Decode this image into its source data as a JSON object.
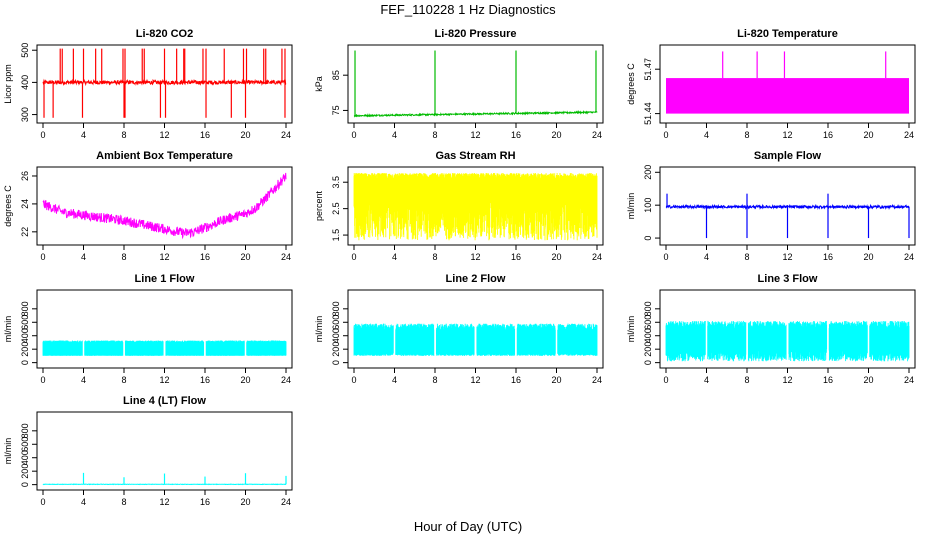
{
  "figure": {
    "title": "FEF_110228  1 Hz Diagnostics",
    "xlabel": "Hour of Day (UTC)"
  },
  "chart_data": [
    {
      "type": "line",
      "title": "Li-820 CO2",
      "ylabel": "Licor ppm",
      "color": "#ff0000",
      "xlim": [
        0,
        24
      ],
      "ylim": [
        280,
        510
      ],
      "xticks": [
        0,
        4,
        8,
        12,
        16,
        20,
        24
      ],
      "yticks": [
        300,
        400,
        500
      ],
      "baseline": 400,
      "noise": 6,
      "spikes_up": [
        1.7,
        1.9,
        3.0,
        4.0,
        5.2,
        5.8,
        7.9,
        8.1,
        9.8,
        10.0,
        12.0,
        13.2,
        13.9,
        14.0,
        15.8,
        16.1,
        17.9,
        19.8,
        20.1,
        21.8,
        22.0,
        23.6,
        23.9
      ],
      "spike_up_value": 505,
      "spikes_down": [
        0.1,
        1.0,
        3.9,
        8.0,
        8.1,
        11.6,
        12.1,
        16.1,
        18.6,
        20.0,
        23.9
      ],
      "spike_down_value": 290
    },
    {
      "type": "line",
      "title": "Li-820 Pressure",
      "ylabel": "kPa",
      "color": "#00bb00",
      "xlim": [
        0,
        24
      ],
      "ylim": [
        72,
        93
      ],
      "xticks": [
        0,
        4,
        8,
        12,
        16,
        20,
        24
      ],
      "yticks": [
        75,
        85
      ],
      "baseline": 73.5,
      "baseline_end": 74.5,
      "noise": 0.2,
      "spikes_up": [
        0.1,
        8.0,
        16.0,
        23.9
      ],
      "spike_up_value": 92
    },
    {
      "type": "area",
      "title": "Li-820 Temperature",
      "ylabel": "degrees C",
      "color": "#ff00ff",
      "xlim": [
        0,
        24
      ],
      "ylim": [
        51.435,
        51.485
      ],
      "xticks": [
        0,
        4,
        8,
        12,
        16,
        20,
        24
      ],
      "yticks": [
        51.44,
        51.47
      ],
      "band": [
        51.44,
        51.464
      ],
      "spikes_up": [
        5.6,
        9.0,
        11.7,
        21.7
      ],
      "spike_up_value": 51.482
    },
    {
      "type": "line",
      "title": "Ambient Box Temperature",
      "ylabel": "degrees C",
      "color": "#ff00ff",
      "xlim": [
        0,
        24
      ],
      "ylim": [
        21.2,
        26.5
      ],
      "xticks": [
        0,
        4,
        8,
        12,
        16,
        20,
        24
      ],
      "yticks": [
        22,
        24,
        26
      ],
      "x": [
        0,
        2,
        4,
        6,
        8,
        10,
        12,
        14,
        15,
        16,
        18,
        20,
        21,
        22,
        23,
        24
      ],
      "y": [
        24.0,
        23.4,
        23.2,
        23.0,
        22.8,
        22.5,
        22.2,
        21.9,
        22.0,
        22.3,
        22.9,
        23.3,
        23.7,
        24.4,
        25.2,
        26.0
      ],
      "noise": 0.35
    },
    {
      "type": "area",
      "title": "Gas Stream RH",
      "ylabel": "percent",
      "color": "#ffff00",
      "xlim": [
        0,
        24
      ],
      "ylim": [
        1.2,
        4.0
      ],
      "xticks": [
        0,
        4,
        8,
        12,
        16,
        20,
        24
      ],
      "yticks": [
        1.5,
        2.5,
        3.5
      ],
      "band_top": [
        3.6,
        3.85
      ],
      "band_bottom": [
        1.3,
        3.0
      ]
    },
    {
      "type": "line",
      "title": "Sample Flow",
      "ylabel": "ml/min",
      "color": "#0000ff",
      "xlim": [
        0,
        24
      ],
      "ylim": [
        -15,
        210
      ],
      "xticks": [
        0,
        4,
        8,
        12,
        16,
        20,
        24
      ],
      "yticks": [
        0,
        100,
        200
      ],
      "baseline": 95,
      "noise": 4,
      "spikes_up": [
        0.1,
        8.0,
        16.0
      ],
      "spike_up_value": 135,
      "spikes_down": [
        4.0,
        8.0,
        12.0,
        16.0,
        20.0,
        24.0
      ],
      "spike_down_value": 0
    },
    {
      "type": "area",
      "title": "Line 1 Flow",
      "ylabel": "ml/min",
      "color": "#00ffff",
      "xlim": [
        0,
        24
      ],
      "ylim": [
        -50,
        1050
      ],
      "xticks": [
        0,
        4,
        8,
        12,
        16,
        20,
        24
      ],
      "yticks": [
        0,
        200,
        400,
        600,
        800
      ],
      "band_top": [
        300,
        330
      ],
      "band_bottom": [
        100,
        110
      ],
      "gaps": [
        4,
        8,
        12,
        16,
        20
      ]
    },
    {
      "type": "area",
      "title": "Line 2 Flow",
      "ylabel": "ml/min",
      "color": "#00ffff",
      "xlim": [
        0,
        24
      ],
      "ylim": [
        -50,
        1050
      ],
      "xticks": [
        0,
        4,
        8,
        12,
        16,
        20,
        24
      ],
      "yticks": [
        0,
        200,
        400,
        600,
        800
      ],
      "band_top": [
        480,
        580
      ],
      "band_bottom": [
        100,
        140
      ],
      "gaps": [
        4,
        8,
        12,
        16,
        20
      ]
    },
    {
      "type": "area",
      "title": "Line 3 Flow",
      "ylabel": "ml/min",
      "color": "#00ffff",
      "xlim": [
        0,
        24
      ],
      "ylim": [
        -50,
        1050
      ],
      "xticks": [
        0,
        4,
        8,
        12,
        16,
        20,
        24
      ],
      "yticks": [
        0,
        200,
        400,
        600,
        800
      ],
      "band_top": [
        500,
        620
      ],
      "band_bottom": [
        20,
        200
      ],
      "gaps": [
        4,
        8,
        12,
        16,
        20
      ]
    },
    {
      "type": "line",
      "title": "Line 4 (LT) Flow",
      "ylabel": "ml/min",
      "color": "#00ffff",
      "xlim": [
        0,
        24
      ],
      "ylim": [
        -50,
        1050
      ],
      "xticks": [
        0,
        4,
        8,
        12,
        16,
        20,
        24
      ],
      "yticks": [
        0,
        200,
        400,
        600,
        800
      ],
      "baseline": 5,
      "noise": 3,
      "spikes_up": [
        4.0,
        8.0,
        12.0,
        16.0,
        20.0,
        24.0
      ],
      "spike_up_values": [
        175,
        110,
        165,
        120,
        170,
        130
      ]
    }
  ]
}
